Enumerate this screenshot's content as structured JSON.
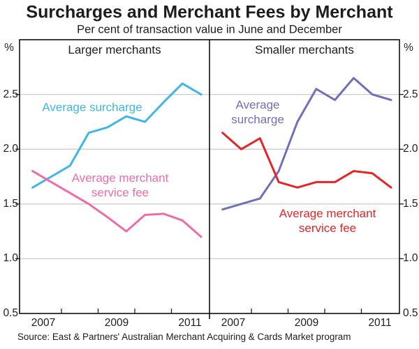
{
  "title": "Surcharges and Merchant Fees by Merchant",
  "subtitle": "Per cent of transaction value in June and December",
  "source": "Source: East & Partners' Australian Merchant Acquiring & Cards Market program",
  "axis": {
    "unit_left": "%",
    "unit_right": "%",
    "y_tick_labels": [
      "2.5",
      "2.0",
      "1.5",
      "1.0",
      "0.5"
    ],
    "y_tick_values": [
      2.5,
      2.0,
      1.5,
      1.0,
      0.5
    ],
    "x_tick_labels": [
      "2007",
      "2009",
      "2011"
    ]
  },
  "colors": {
    "grid": "#cccccc",
    "axis": "#1d1d1b",
    "text": "#1d1d1b",
    "larger_surcharge": "#3db7e8",
    "larger_fee": "#f06ca8",
    "smaller_surcharge": "#6f6fbc",
    "smaller_fee": "#e62427"
  },
  "chart_data": {
    "type": "line",
    "title": "Surcharges and Merchant Fees by Merchant",
    "subtitle": "Per cent of transaction value in June and December",
    "ylabel": "%",
    "ylim": [
      0.5,
      3.0
    ],
    "grid": "horizontal at 1.0, 1.5, 2.0, 2.5",
    "legend": "inline colored labels",
    "x": [
      "Jun 2007",
      "Dec 2007",
      "Jun 2008",
      "Dec 2008",
      "Jun 2009",
      "Dec 2009",
      "Jun 2010",
      "Dec 2010",
      "Jun 2011",
      "Dec 2011"
    ],
    "panels": [
      {
        "label": "Larger merchants",
        "series": [
          {
            "name": "Average surcharge",
            "label_lines": [
              "Average surcharge"
            ],
            "color": "#3db7e8",
            "values": [
              1.65,
              1.75,
              1.85,
              2.15,
              2.2,
              2.3,
              2.25,
              2.43,
              2.6,
              2.5
            ]
          },
          {
            "name": "Average merchant service fee",
            "label_lines": [
              "Average merchant",
              "service fee"
            ],
            "color": "#f06ca8",
            "values": [
              1.8,
              1.7,
              1.6,
              1.5,
              1.38,
              1.25,
              1.4,
              1.41,
              1.35,
              1.2
            ]
          }
        ]
      },
      {
        "label": "Smaller merchants",
        "series": [
          {
            "name": "Average surcharge",
            "label_lines": [
              "Average",
              "surcharge"
            ],
            "color": "#6f6fbc",
            "values": [
              1.45,
              1.5,
              1.55,
              1.8,
              2.25,
              2.55,
              2.45,
              2.65,
              2.5,
              2.45
            ]
          },
          {
            "name": "Average merchant service fee",
            "label_lines": [
              "Average merchant",
              "service fee"
            ],
            "color": "#e62427",
            "values": [
              2.15,
              2.0,
              2.1,
              1.7,
              1.65,
              1.7,
              1.7,
              1.8,
              1.78,
              1.65
            ]
          }
        ]
      }
    ]
  }
}
